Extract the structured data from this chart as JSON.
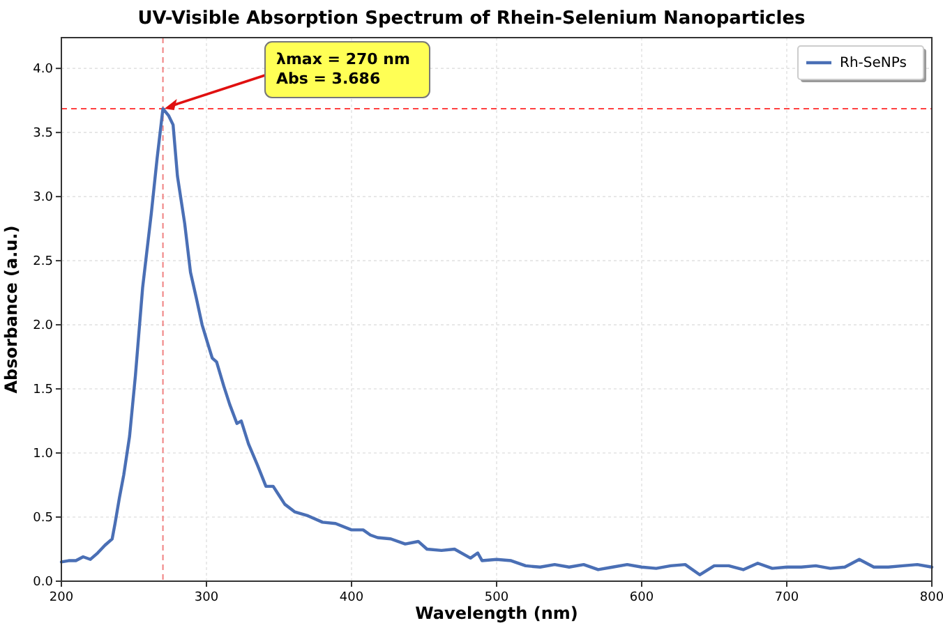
{
  "chart_data": {
    "type": "line",
    "title": "UV-Visible Absorption Spectrum of Rhein-Selenium Nanoparticles",
    "xlabel": "Wavelength (nm)",
    "ylabel": "Absorbance (a.u.)",
    "xlim": [
      200,
      800
    ],
    "xticks": [
      200,
      300,
      400,
      500,
      600,
      700,
      800
    ],
    "ylim": [
      0,
      4.24
    ],
    "yticks": [
      {
        "value": 0,
        "label": "0.0"
      },
      {
        "value": 0.5,
        "label": "0.5"
      },
      {
        "value": 1,
        "label": "1.0"
      },
      {
        "value": 1.5,
        "label": "1.5"
      },
      {
        "value": 2,
        "label": "2.0"
      },
      {
        "value": 2.5,
        "label": "2.5"
      },
      {
        "value": 3,
        "label": "3.0"
      },
      {
        "value": 3.5,
        "label": "3.5"
      },
      {
        "value": 4,
        "label": "4.0"
      }
    ],
    "grid": true,
    "legend": "top right",
    "marker": "none",
    "line_style": "solid",
    "series": [
      {
        "name": "Rh-SeNPs",
        "color": "#4a6fb5",
        "x": [
          200,
          205,
          210,
          215,
          220,
          225,
          230,
          235,
          237,
          240,
          243,
          247,
          251,
          256,
          262,
          266,
          270,
          274,
          277,
          280,
          285,
          289,
          293,
          297,
          301,
          304,
          307,
          312,
          316,
          321,
          324,
          329,
          335,
          341,
          346,
          350,
          354,
          361,
          370,
          380,
          389,
          400,
          408,
          413,
          418,
          427,
          437,
          446,
          452,
          462,
          471,
          482,
          487,
          490,
          500,
          510,
          520,
          530,
          540,
          550,
          560,
          570,
          580,
          590,
          600,
          610,
          620,
          630,
          640,
          650,
          660,
          670,
          680,
          690,
          700,
          710,
          720,
          730,
          740,
          750,
          760,
          770,
          780,
          790,
          800
        ],
        "values": [
          0.15,
          0.16,
          0.16,
          0.19,
          0.17,
          0.22,
          0.28,
          0.33,
          0.45,
          0.65,
          0.83,
          1.13,
          1.6,
          2.29,
          2.87,
          3.3,
          3.686,
          3.63,
          3.56,
          3.16,
          2.79,
          2.41,
          2.21,
          2.0,
          1.85,
          1.74,
          1.71,
          1.52,
          1.38,
          1.23,
          1.25,
          1.07,
          0.91,
          0.74,
          0.74,
          0.67,
          0.6,
          0.54,
          0.51,
          0.46,
          0.45,
          0.4,
          0.4,
          0.36,
          0.34,
          0.33,
          0.29,
          0.31,
          0.25,
          0.24,
          0.25,
          0.18,
          0.22,
          0.16,
          0.17,
          0.16,
          0.12,
          0.11,
          0.13,
          0.11,
          0.13,
          0.09,
          0.11,
          0.13,
          0.11,
          0.1,
          0.12,
          0.13,
          0.05,
          0.12,
          0.12,
          0.09,
          0.14,
          0.1,
          0.11,
          0.11,
          0.12,
          0.1,
          0.11,
          0.17,
          0.11,
          0.11,
          0.12,
          0.13,
          0.11
        ]
      }
    ],
    "ref_lines": [
      {
        "axis": "x",
        "value": 270,
        "color": "#f08080",
        "line_style": "dashed"
      },
      {
        "axis": "y",
        "value": 3.686,
        "color": "#ff4040",
        "line_style": "dashed"
      }
    ],
    "annotations": [
      {
        "text": "λmax = 270 nm\nAbs = 3.686",
        "x": 270,
        "y": 3.686
      }
    ]
  }
}
